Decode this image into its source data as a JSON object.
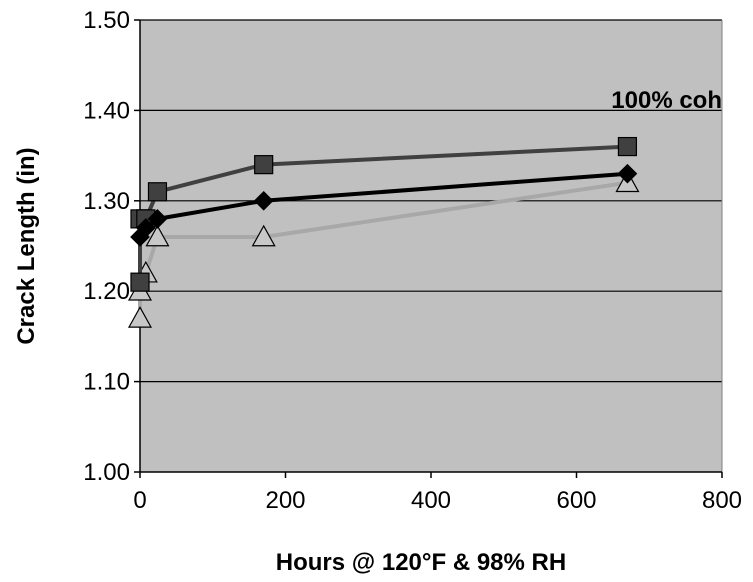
{
  "chart_data": {
    "type": "line",
    "title": "",
    "xlabel": "Hours @ 120°F & 98% RH",
    "ylabel": "Crack Length (in)",
    "xlim": [
      0,
      800
    ],
    "ylim": [
      1.0,
      1.5
    ],
    "x_ticks": [
      "0",
      "200",
      "400",
      "600",
      "800"
    ],
    "y_ticks": [
      "1.00",
      "1.10",
      "1.20",
      "1.30",
      "1.40",
      "1.50"
    ],
    "grid": true,
    "legend": "none",
    "plot_background": "#c0c0c0",
    "annotation": "100% coh",
    "series": [
      {
        "marker": "square",
        "color": "#404040",
        "marker_fill": "#404040",
        "points": [
          {
            "x": 0,
            "y": 1.21
          },
          {
            "x": 0,
            "y": 1.28
          },
          {
            "x": 8,
            "y": 1.28
          },
          {
            "x": 24,
            "y": 1.31
          },
          {
            "x": 170,
            "y": 1.34
          },
          {
            "x": 670,
            "y": 1.36
          }
        ]
      },
      {
        "marker": "diamond",
        "color": "#000000",
        "marker_fill": "#000000",
        "points": [
          {
            "x": 0,
            "y": 1.26
          },
          {
            "x": 8,
            "y": 1.27
          },
          {
            "x": 24,
            "y": 1.28
          },
          {
            "x": 170,
            "y": 1.3
          },
          {
            "x": 670,
            "y": 1.33
          }
        ]
      },
      {
        "marker": "triangle",
        "color": "#a8a8a8",
        "marker_fill": "#c8c8c8",
        "points": [
          {
            "x": 0,
            "y": 1.17
          },
          {
            "x": 0,
            "y": 1.2
          },
          {
            "x": 8,
            "y": 1.22
          },
          {
            "x": 24,
            "y": 1.26
          },
          {
            "x": 170,
            "y": 1.26
          },
          {
            "x": 670,
            "y": 1.32
          }
        ]
      }
    ]
  }
}
